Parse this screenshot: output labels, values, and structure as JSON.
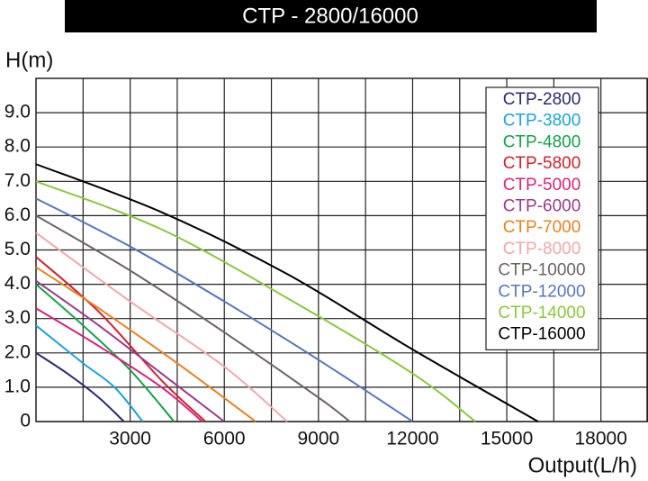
{
  "chart_data": {
    "type": "line",
    "title": "CTP - 2800/16000",
    "y_label": "H(m)",
    "x_label": "Output(L/h)",
    "xlim": [
      0,
      19500
    ],
    "ylim": [
      0,
      10
    ],
    "xticks": [
      3000,
      6000,
      9000,
      12000,
      15000,
      18000
    ],
    "x_minor_ticks": [
      1500,
      4500,
      7500,
      10500,
      13500,
      16500,
      19500
    ],
    "yticks": [
      0,
      {
        "value": 1,
        "label": "1.0"
      },
      {
        "value": 2,
        "label": "2.0"
      },
      {
        "value": 3,
        "label": "3.0"
      },
      {
        "value": 4,
        "label": "4.0"
      },
      {
        "value": 5,
        "label": "5.0"
      },
      {
        "value": 6,
        "label": "6.0"
      },
      {
        "value": 7,
        "label": "7.0"
      },
      {
        "value": 8,
        "label": "8.0"
      },
      {
        "value": 9,
        "label": "9.0"
      }
    ],
    "grid": true,
    "legend": "top-right",
    "series": [
      {
        "name": "CTP-2800",
        "color": "#2b2a6e",
        "x": [
          0,
          1000,
          2000,
          2800
        ],
        "values": [
          2.0,
          1.4,
          0.7,
          0
        ]
      },
      {
        "name": "CTP-3800",
        "color": "#1aa3d9",
        "x": [
          0,
          1500,
          2500,
          3400
        ],
        "values": [
          2.8,
          1.7,
          1.0,
          0
        ]
      },
      {
        "name": "CTP-4800",
        "color": "#16a04a",
        "x": [
          0,
          1500,
          3000,
          4400
        ],
        "values": [
          4.0,
          2.8,
          1.5,
          0
        ]
      },
      {
        "name": "CTP-5800",
        "color": "#d0202f",
        "x": [
          0,
          2000,
          4000,
          5400
        ],
        "values": [
          4.8,
          3.2,
          1.2,
          0
        ]
      },
      {
        "name": "CTP-5000",
        "color": "#d6247a",
        "x": [
          0,
          2000,
          4000,
          5300
        ],
        "values": [
          3.3,
          2.2,
          1.0,
          0
        ]
      },
      {
        "name": "CTP-6000",
        "color": "#9a3a8a",
        "x": [
          0,
          2000,
          4000,
          6000
        ],
        "values": [
          4.1,
          2.8,
          1.4,
          0
        ]
      },
      {
        "name": "CTP-7000",
        "color": "#e6821e",
        "x": [
          0,
          2000,
          4500,
          7000
        ],
        "values": [
          4.5,
          3.3,
          1.7,
          0
        ]
      },
      {
        "name": "CTP-8000",
        "color": "#f0a8a8",
        "x": [
          0,
          3000,
          6000,
          8000
        ],
        "values": [
          5.5,
          3.5,
          1.6,
          0
        ]
      },
      {
        "name": "CTP-10000",
        "color": "#6b6560",
        "x": [
          0,
          3000,
          6000,
          9000,
          10000
        ],
        "values": [
          6.0,
          4.4,
          2.6,
          0.7,
          0
        ]
      },
      {
        "name": "CTP-12000",
        "color": "#5876b8",
        "x": [
          0,
          3000,
          6000,
          9000,
          12000
        ],
        "values": [
          6.5,
          5.1,
          3.5,
          1.8,
          0
        ]
      },
      {
        "name": "CTP-14000",
        "color": "#8cc63f",
        "x": [
          0,
          4000,
          8000,
          12000,
          14000
        ],
        "values": [
          7.0,
          5.6,
          3.6,
          1.4,
          0
        ]
      },
      {
        "name": "CTP-16000",
        "color": "#000000",
        "x": [
          0,
          4000,
          8000,
          12000,
          16000
        ],
        "values": [
          7.5,
          6.1,
          4.3,
          2.1,
          0
        ]
      }
    ]
  }
}
